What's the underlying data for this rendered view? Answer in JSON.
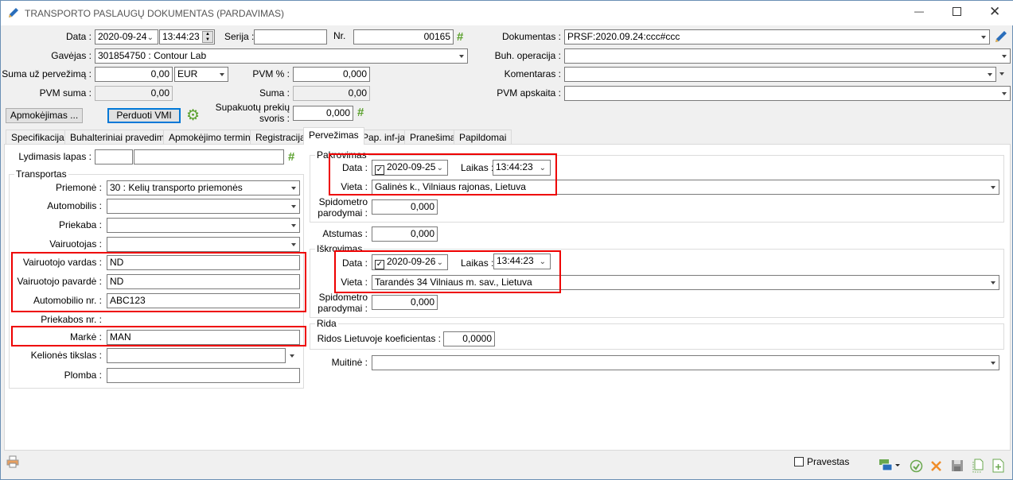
{
  "window": {
    "title": "TRANSPORTO PASLAUGŲ DOKUMENTAS (PARDAVIMAS)"
  },
  "header": {
    "data_label": "Data :",
    "date": "2020-09-24",
    "time": "13:44:23",
    "serija_label": "Serija :",
    "serija": "",
    "nr_label": "Nr.",
    "nr": "00165",
    "gavejas_label": "Gavėjas :",
    "gavejas": "301854750 : Contour Lab",
    "suma_uz_label": "Suma už pervežimą :",
    "suma_uz": "0,00",
    "currency": "EUR",
    "pvm_pct_label": "PVM % :",
    "pvm_pct": "0,000",
    "pvm_suma_label": "PVM suma :",
    "pvm_suma": "0,00",
    "suma_label": "Suma :",
    "suma": "0,00",
    "apmokejimas_button": "Apmokėjimas ...",
    "perduoti_button": "Perduoti VMI",
    "svoris_label1": "Supakuotų prekių",
    "svoris_label2": "svoris :",
    "svoris": "0,000",
    "dokumentas_label": "Dokumentas :",
    "dokumentas": "PRSF:2020.09.24:ccc#ccc",
    "buh_label": "Buh. operacija :",
    "buh": "",
    "komentaras_label": "Komentaras :",
    "komentaras": "",
    "pvm_apskaita_label": "PVM apskaita :",
    "pvm_apskaita": ""
  },
  "tabs": [
    {
      "label": "Specifikacija"
    },
    {
      "label": "Buhalteriniai pravedimai"
    },
    {
      "label": "Apmokėjimo terminas"
    },
    {
      "label": "Registracija"
    },
    {
      "label": "Pervežimas"
    },
    {
      "label": "Pap. inf-ja"
    },
    {
      "label": "Pranešimai"
    },
    {
      "label": "Papildomai"
    }
  ],
  "left": {
    "lydimasis_label": "Lydimasis lapas :",
    "lydimasis1": "",
    "lydimasis2": "",
    "group_title": "Transportas",
    "priemone_label": "Priemonė :",
    "priemone": "30 : Kelių transporto priemonės",
    "automobilis_label": "Automobilis :",
    "automobilis": "",
    "priekaba_label": "Priekaba :",
    "priekaba": "",
    "vairuotojas_label": "Vairuotojas :",
    "vairuotojas": "",
    "vardas_label": "Vairuotojo vardas :",
    "vardas": "ND",
    "pavarde_label": "Vairuotojo pavardė :",
    "pavarde": "ND",
    "auto_nr_label": "Automobilio nr. :",
    "auto_nr": "ABC123",
    "priekabos_nr_label": "Priekabos nr. :",
    "priekabos_nr": "",
    "marke_label": "Markė :",
    "marke": "MAN",
    "tikslas_label": "Kelionės tikslas :",
    "tikslas": "",
    "plomba_label": "Plomba :",
    "plomba": ""
  },
  "right": {
    "pakrovimas": {
      "title": "Pakrovimas",
      "data_label": "Data :",
      "date": "2020-09-25",
      "checked": true,
      "laikas_label": "Laikas :",
      "time": "13:44:23",
      "vieta_label": "Vieta :",
      "vieta": "Galinės k., Vilniaus rajonas, Lietuva",
      "spid_label1": "Spidometro",
      "spid_label2": "parodymai :",
      "spid": "0,000"
    },
    "atstumas_label": "Atstumas :",
    "atstumas": "0,000",
    "iskrovimas": {
      "title": "Iškrovimas",
      "data_label": "Data :",
      "date": "2020-09-26",
      "checked": true,
      "laikas_label": "Laikas :",
      "time": "13:44:23",
      "vieta_label": "Vieta :",
      "vieta": "Tarandės 34 Vilniaus m. sav., Lietuva",
      "spid_label1": "Spidometro",
      "spid_label2": "parodymai :",
      "spid": "0,000"
    },
    "rida": {
      "title": "Rida",
      "koef_label": "Ridos Lietuvoje koeficientas :",
      "koef": "0,0000"
    },
    "muitine_label": "Muitinė :",
    "muitine": ""
  },
  "footer": {
    "pravestas_label": "Pravestas",
    "pravestas": false
  },
  "colors": {
    "highlight": "#e00000",
    "accent_green": "#5aa02c",
    "accent_orange": "#f08c28"
  }
}
